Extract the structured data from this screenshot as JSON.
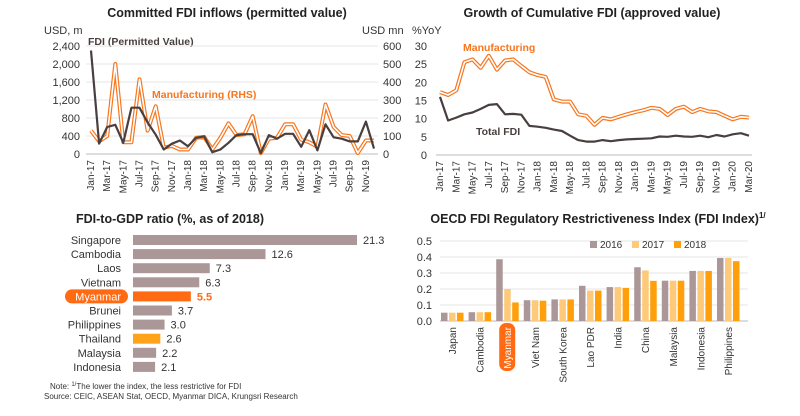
{
  "colors": {
    "fdi": "#4a3f3f",
    "mfg": "#f7761e",
    "bar_gray": "#ab9797",
    "highlight": "#ff6a13",
    "thailand": "#ffa31a",
    "y2016": "#ab9797",
    "y2017": "#ffc97a",
    "y2018": "#ff9f0a"
  },
  "chart_data": [
    {
      "type": "line",
      "title": "Committed FDI inflows (permitted value)",
      "ylabel_left": "USD, m",
      "ylabel_right": "USD mn",
      "ylim_left": [
        0,
        2400
      ],
      "ylim_right": [
        0,
        600
      ],
      "yticks_left": [
        "2,400",
        "2,000",
        "1,600",
        "1,200",
        "800",
        "400",
        "0"
      ],
      "yticks_right": [
        "600",
        "500",
        "400",
        "300",
        "200",
        "100",
        "0"
      ],
      "xtick_labels": [
        "Jan-17",
        "Mar-17",
        "May-17",
        "Jul-17",
        "Sep-17",
        "Nov-17",
        "Jan-18",
        "Mar-18",
        "May-18",
        "Jul-18",
        "Sep-18",
        "Nov-18",
        "Jan-19",
        "Mar-19",
        "May-19",
        "Jul-19",
        "Sep-19",
        "Nov-19"
      ],
      "series": [
        {
          "name": "FDI (Permitted Value)",
          "axis": "left",
          "values": [
            2300,
            230,
            600,
            650,
            250,
            1030,
            1030,
            700,
            430,
            100,
            230,
            300,
            170,
            360,
            390,
            40,
            100,
            250,
            420,
            440,
            440,
            20,
            420,
            340,
            450,
            450,
            160,
            530,
            80,
            660,
            370,
            340,
            280,
            280,
            720,
            120
          ]
        },
        {
          "name": "Manufacturing (RHS)",
          "axis": "right",
          "values": [
            130,
            70,
            100,
            500,
            65,
            65,
            415,
            130,
            265,
            35,
            45,
            25,
            25,
            90,
            95,
            25,
            90,
            170,
            105,
            110,
            210,
            5,
            85,
            90,
            165,
            165,
            80,
            65,
            40,
            275,
            150,
            105,
            100,
            5,
            75,
            75
          ]
        }
      ]
    },
    {
      "type": "line",
      "title": "Growth of Cumulative FDI (approved value)",
      "ylabel": "%YoY",
      "ylim": [
        0,
        30
      ],
      "yticks": [
        "30",
        "25",
        "20",
        "15",
        "10",
        "5",
        "0"
      ],
      "xtick_labels": [
        "Jan-17",
        "Mar-17",
        "May-17",
        "Jul-17",
        "Sep-17",
        "Nov-17",
        "Jan-18",
        "Mar-18",
        "May-18",
        "Jul-18",
        "Sep-18",
        "Nov-18",
        "Jan-19",
        "Mar-19",
        "May-19",
        "Jul-19",
        "Sep-19",
        "Nov-19",
        "Jan-20",
        "Mar-20"
      ],
      "series": [
        {
          "name": "Manufacturing",
          "values": [
            17.3,
            16.5,
            17.8,
            25.5,
            26.3,
            24,
            27.3,
            23.5,
            26,
            26.3,
            24.5,
            22.8,
            22,
            21.5,
            15.3,
            14.7,
            14.7,
            11.2,
            10.8,
            8.3,
            10.2,
            9.8,
            10.5,
            11.2,
            11.8,
            12.3,
            13,
            12.7,
            11,
            12.7,
            13.3,
            11.8,
            12.7,
            12,
            11.8,
            10.8,
            9.8,
            10.5,
            10.3
          ]
        },
        {
          "name": "Total FDI",
          "values": [
            16,
            9.5,
            10.3,
            11.2,
            11.7,
            12.7,
            13.8,
            14,
            11.2,
            11.3,
            11.1,
            8,
            7.8,
            7.5,
            7,
            6.6,
            5.3,
            4.1,
            3.7,
            3.7,
            4.1,
            3.8,
            4.1,
            4.3,
            4.4,
            4.5,
            4.6,
            5.1,
            5,
            5.3,
            5.1,
            5,
            5.3,
            4.9,
            5.5,
            5.1,
            5.7,
            6,
            5.3
          ]
        }
      ]
    },
    {
      "type": "bar",
      "orientation": "horizontal",
      "title": "FDI-to-GDP ratio (%, as of 2018)",
      "categories": [
        "Singapore",
        "Cambodia",
        "Laos",
        "Vietnam",
        "Myanmar",
        "Brunei",
        "Philippines",
        "Thailand",
        "Malaysia",
        "Indonesia"
      ],
      "values": [
        21.3,
        12.6,
        7.3,
        6.3,
        5.5,
        3.7,
        3.0,
        2.6,
        2.2,
        2.1
      ],
      "labels": [
        "21.3",
        "12.6",
        "7.3",
        "6.3",
        "5.5",
        "3.7",
        "3.0",
        "2.6",
        "2.2",
        "2.1"
      ],
      "highlight": "Myanmar",
      "secondary_highlight": "Thailand"
    },
    {
      "type": "bar",
      "title": "OECD FDI Regulatory Restrictiveness Index (FDI Index)",
      "title_sup": "1/",
      "ylim": [
        0,
        0.5
      ],
      "yticks": [
        "0.5",
        "0.4",
        "0.3",
        "0.2",
        "0.1",
        "0.0"
      ],
      "legend_position": "top-right",
      "categories": [
        "Japan",
        "Cambodia",
        "Myanmar",
        "Viet Nam",
        "South Korea",
        "Lao PDR",
        "India",
        "China",
        "Malaysia",
        "Indonesia",
        "Philippines"
      ],
      "highlight": "Myanmar",
      "series": [
        {
          "name": "2016",
          "values": [
            0.052,
            0.055,
            0.386,
            0.13,
            0.135,
            0.22,
            0.212,
            0.336,
            0.252,
            0.313,
            0.394
          ]
        },
        {
          "name": "2017",
          "values": [
            0.052,
            0.055,
            0.2,
            0.13,
            0.135,
            0.19,
            0.212,
            0.316,
            0.252,
            0.313,
            0.394
          ]
        },
        {
          "name": "2018",
          "values": [
            0.052,
            0.055,
            0.116,
            0.127,
            0.135,
            0.19,
            0.207,
            0.251,
            0.252,
            0.313,
            0.374
          ]
        }
      ]
    }
  ],
  "footer": {
    "note_prefix": "Note: ",
    "note_sup": "1/",
    "note_text": "The lower the index, the less restrictive for FDI",
    "source": "Source: CEIC, ASEAN Stat, OECD, Myanmar DICA, Krungsri Research"
  }
}
